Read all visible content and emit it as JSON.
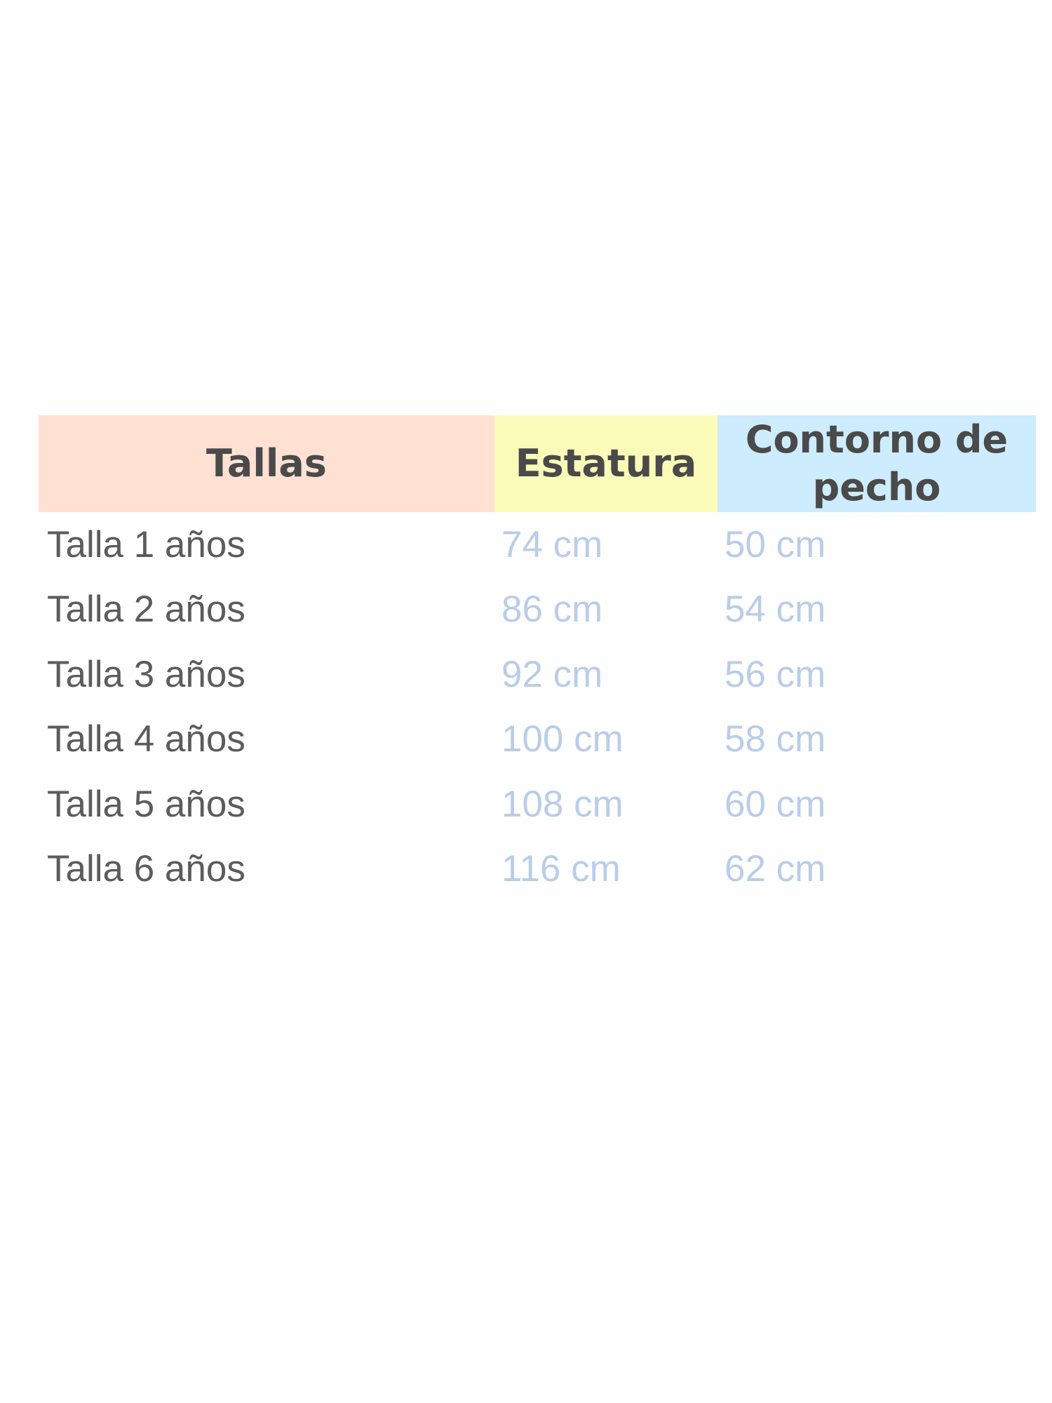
{
  "colors": {
    "tallas_header": "#ffe1d4",
    "estatura_header": "#fbfbb9",
    "pecho_header": "#cdecfd",
    "value_text": "#b9cde8"
  },
  "headers": [
    "Tallas",
    "Estatura",
    "Contorno de pecho"
  ],
  "rows": [
    [
      "Talla 1 años",
      "74 cm",
      "50 cm"
    ],
    [
      "Talla 2 años",
      "86 cm",
      "54 cm"
    ],
    [
      "Talla 3 años",
      "92 cm",
      "56 cm"
    ],
    [
      "Talla 4 años",
      "100 cm",
      "58 cm"
    ],
    [
      "Talla 5 años",
      "108 cm",
      "60 cm"
    ],
    [
      "Talla 6 años",
      "116 cm",
      "62 cm"
    ]
  ]
}
